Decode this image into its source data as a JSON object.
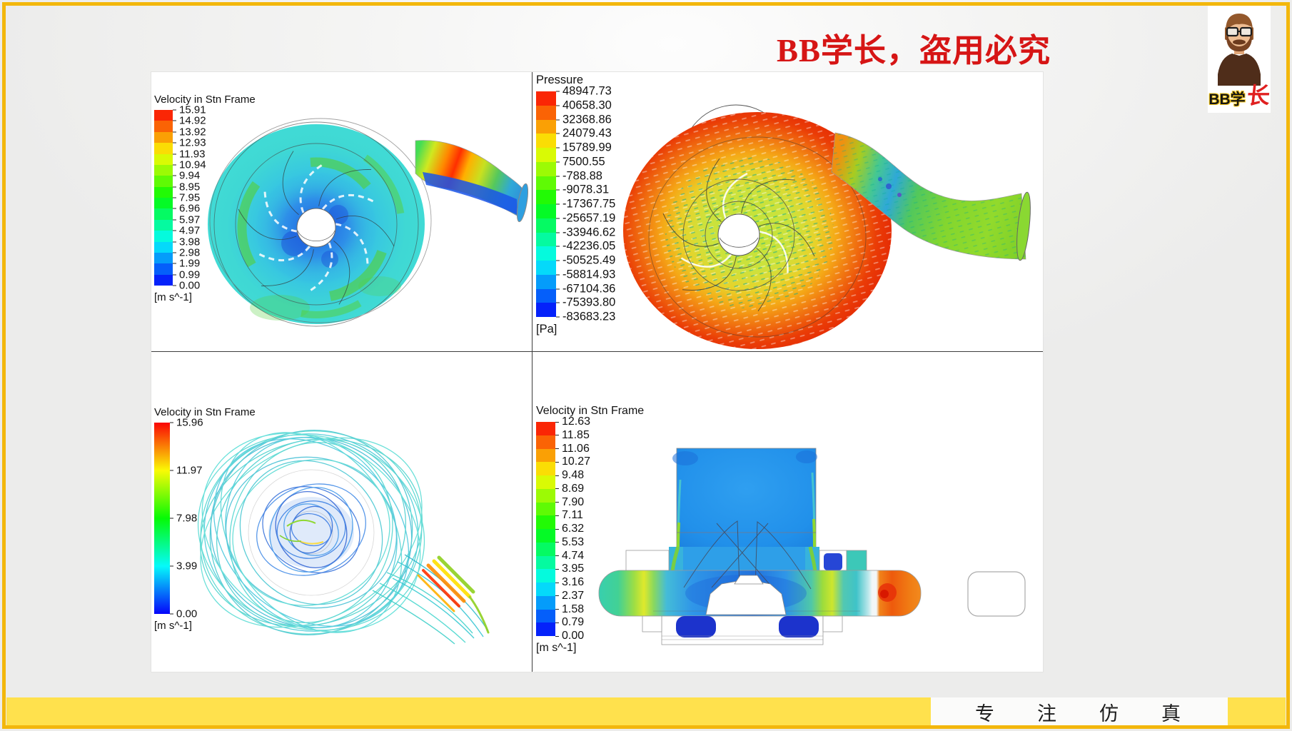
{
  "page": {
    "title": "BB学长，盗用必究",
    "footer_text": "专注仿真",
    "logo_black": "BB学",
    "logo_red": "长",
    "colors": {
      "frame_gold": "#F3B70C",
      "footer_yellow": "#FFE14D",
      "title_red": "#D61515",
      "logo_red": "#E02020"
    }
  },
  "chart_data": [
    {
      "id": "velocity-front",
      "type": "heatmap",
      "title": "Velocity in Stn Frame",
      "unit": "[m s^-1]",
      "style": "discrete",
      "min": 0.0,
      "max": 15.91,
      "ticks": [
        "15.91",
        "14.92",
        "13.92",
        "12.93",
        "11.93",
        "10.94",
        "9.94",
        "8.95",
        "7.95",
        "6.96",
        "5.97",
        "4.97",
        "3.98",
        "2.98",
        "1.99",
        "0.99",
        "0.00"
      ],
      "description": "Velocity contour on pump impeller front plane with outlet pipe"
    },
    {
      "id": "pressure",
      "type": "heatmap",
      "title": "Pressure",
      "unit": "[Pa]",
      "style": "discrete",
      "min": -83683.23,
      "max": 48947.73,
      "ticks": [
        "48947.73",
        "40658.30",
        "32368.86",
        "24079.43",
        "15789.99",
        "7500.55",
        "-788.88",
        "-9078.31",
        "-17367.75",
        "-25657.19",
        "-33946.62",
        "-42236.05",
        "-50525.49",
        "-58814.93",
        "-67104.36",
        "-75393.80",
        "-83683.23"
      ],
      "description": "Pressure contour with velocity vectors on pump volute and outlet pipe"
    },
    {
      "id": "velocity-streamlines",
      "type": "heatmap",
      "title": "Velocity in Stn Frame",
      "unit": "[m s^-1]",
      "style": "continuous",
      "min": 0.0,
      "max": 15.96,
      "ticks": [
        "15.96",
        "11.97",
        "7.98",
        "3.99",
        "0.00"
      ],
      "description": "Velocity streamlines swirling through the pump with outlet tail"
    },
    {
      "id": "velocity-section",
      "type": "heatmap",
      "title": "Velocity in Stn Frame",
      "unit": "[m s^-1]",
      "style": "discrete",
      "min": 0.0,
      "max": 12.63,
      "ticks": [
        "12.63",
        "11.85",
        "11.06",
        "10.27",
        "9.48",
        "8.69",
        "7.90",
        "7.11",
        "6.32",
        "5.53",
        "4.74",
        "3.95",
        "3.16",
        "2.37",
        "1.58",
        "0.79",
        "0.00"
      ],
      "description": "Velocity contour on pump meridional cross-section"
    }
  ]
}
